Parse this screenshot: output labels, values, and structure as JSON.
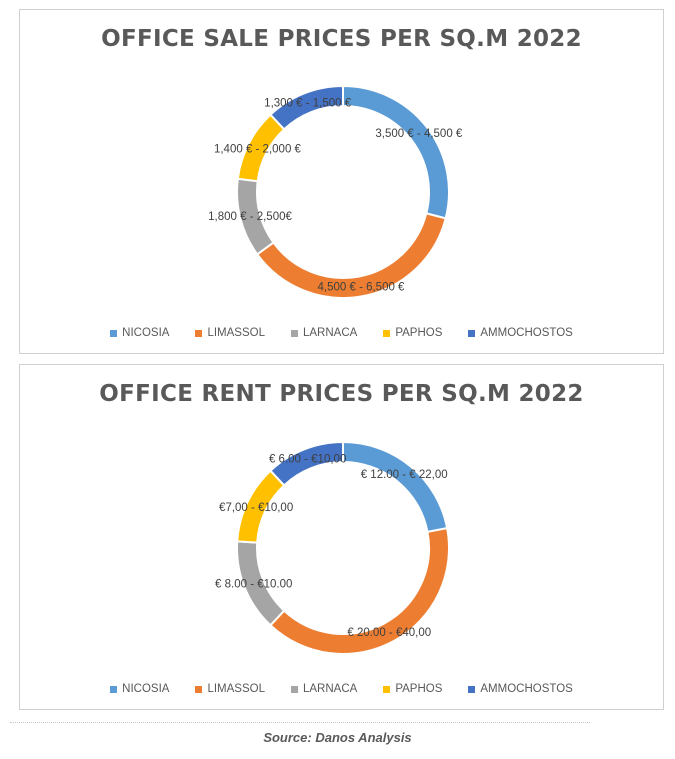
{
  "colors": {
    "NICOSIA": "#5b9bd5",
    "LIMASSOL": "#ed7d31",
    "LARNACA": "#a5a5a5",
    "PAPHOS": "#ffc000",
    "AMMOCHOSTOS": "#4472c4"
  },
  "chart_data": [
    {
      "type": "pie",
      "variant": "donut",
      "title": "OFFICE SALE PRICES PER SQ.M 2022",
      "categories": [
        "NICOSIA",
        "LIMASSOL",
        "LARNACA",
        "PAPHOS",
        "AMMOCHOSTOS"
      ],
      "values": [
        29,
        36,
        12,
        11,
        12
      ],
      "data_labels": [
        "3,500 € - 4,500 €",
        "4,500 € - 6,500 €",
        "1,800 € - 2,500€",
        "1,400 € - 2,000 €",
        "1,300 € - 1,500 €"
      ],
      "legend": "bottom"
    },
    {
      "type": "pie",
      "variant": "donut",
      "title": "OFFICE RENT PRICES PER SQ.M 2022",
      "categories": [
        "NICOSIA",
        "LIMASSOL",
        "LARNACA",
        "PAPHOS",
        "AMMOCHOSTOS"
      ],
      "values": [
        22,
        40,
        14,
        12,
        12
      ],
      "data_labels": [
        "€ 12.00 - € 22,00",
        "€ 20.00 - €40,00",
        "€ 8.00 - €10.00",
        "€7,00 - €10,00",
        "€ 6.00 - €10,00"
      ],
      "legend": "bottom"
    }
  ],
  "source": "Source: Danos Analysis"
}
